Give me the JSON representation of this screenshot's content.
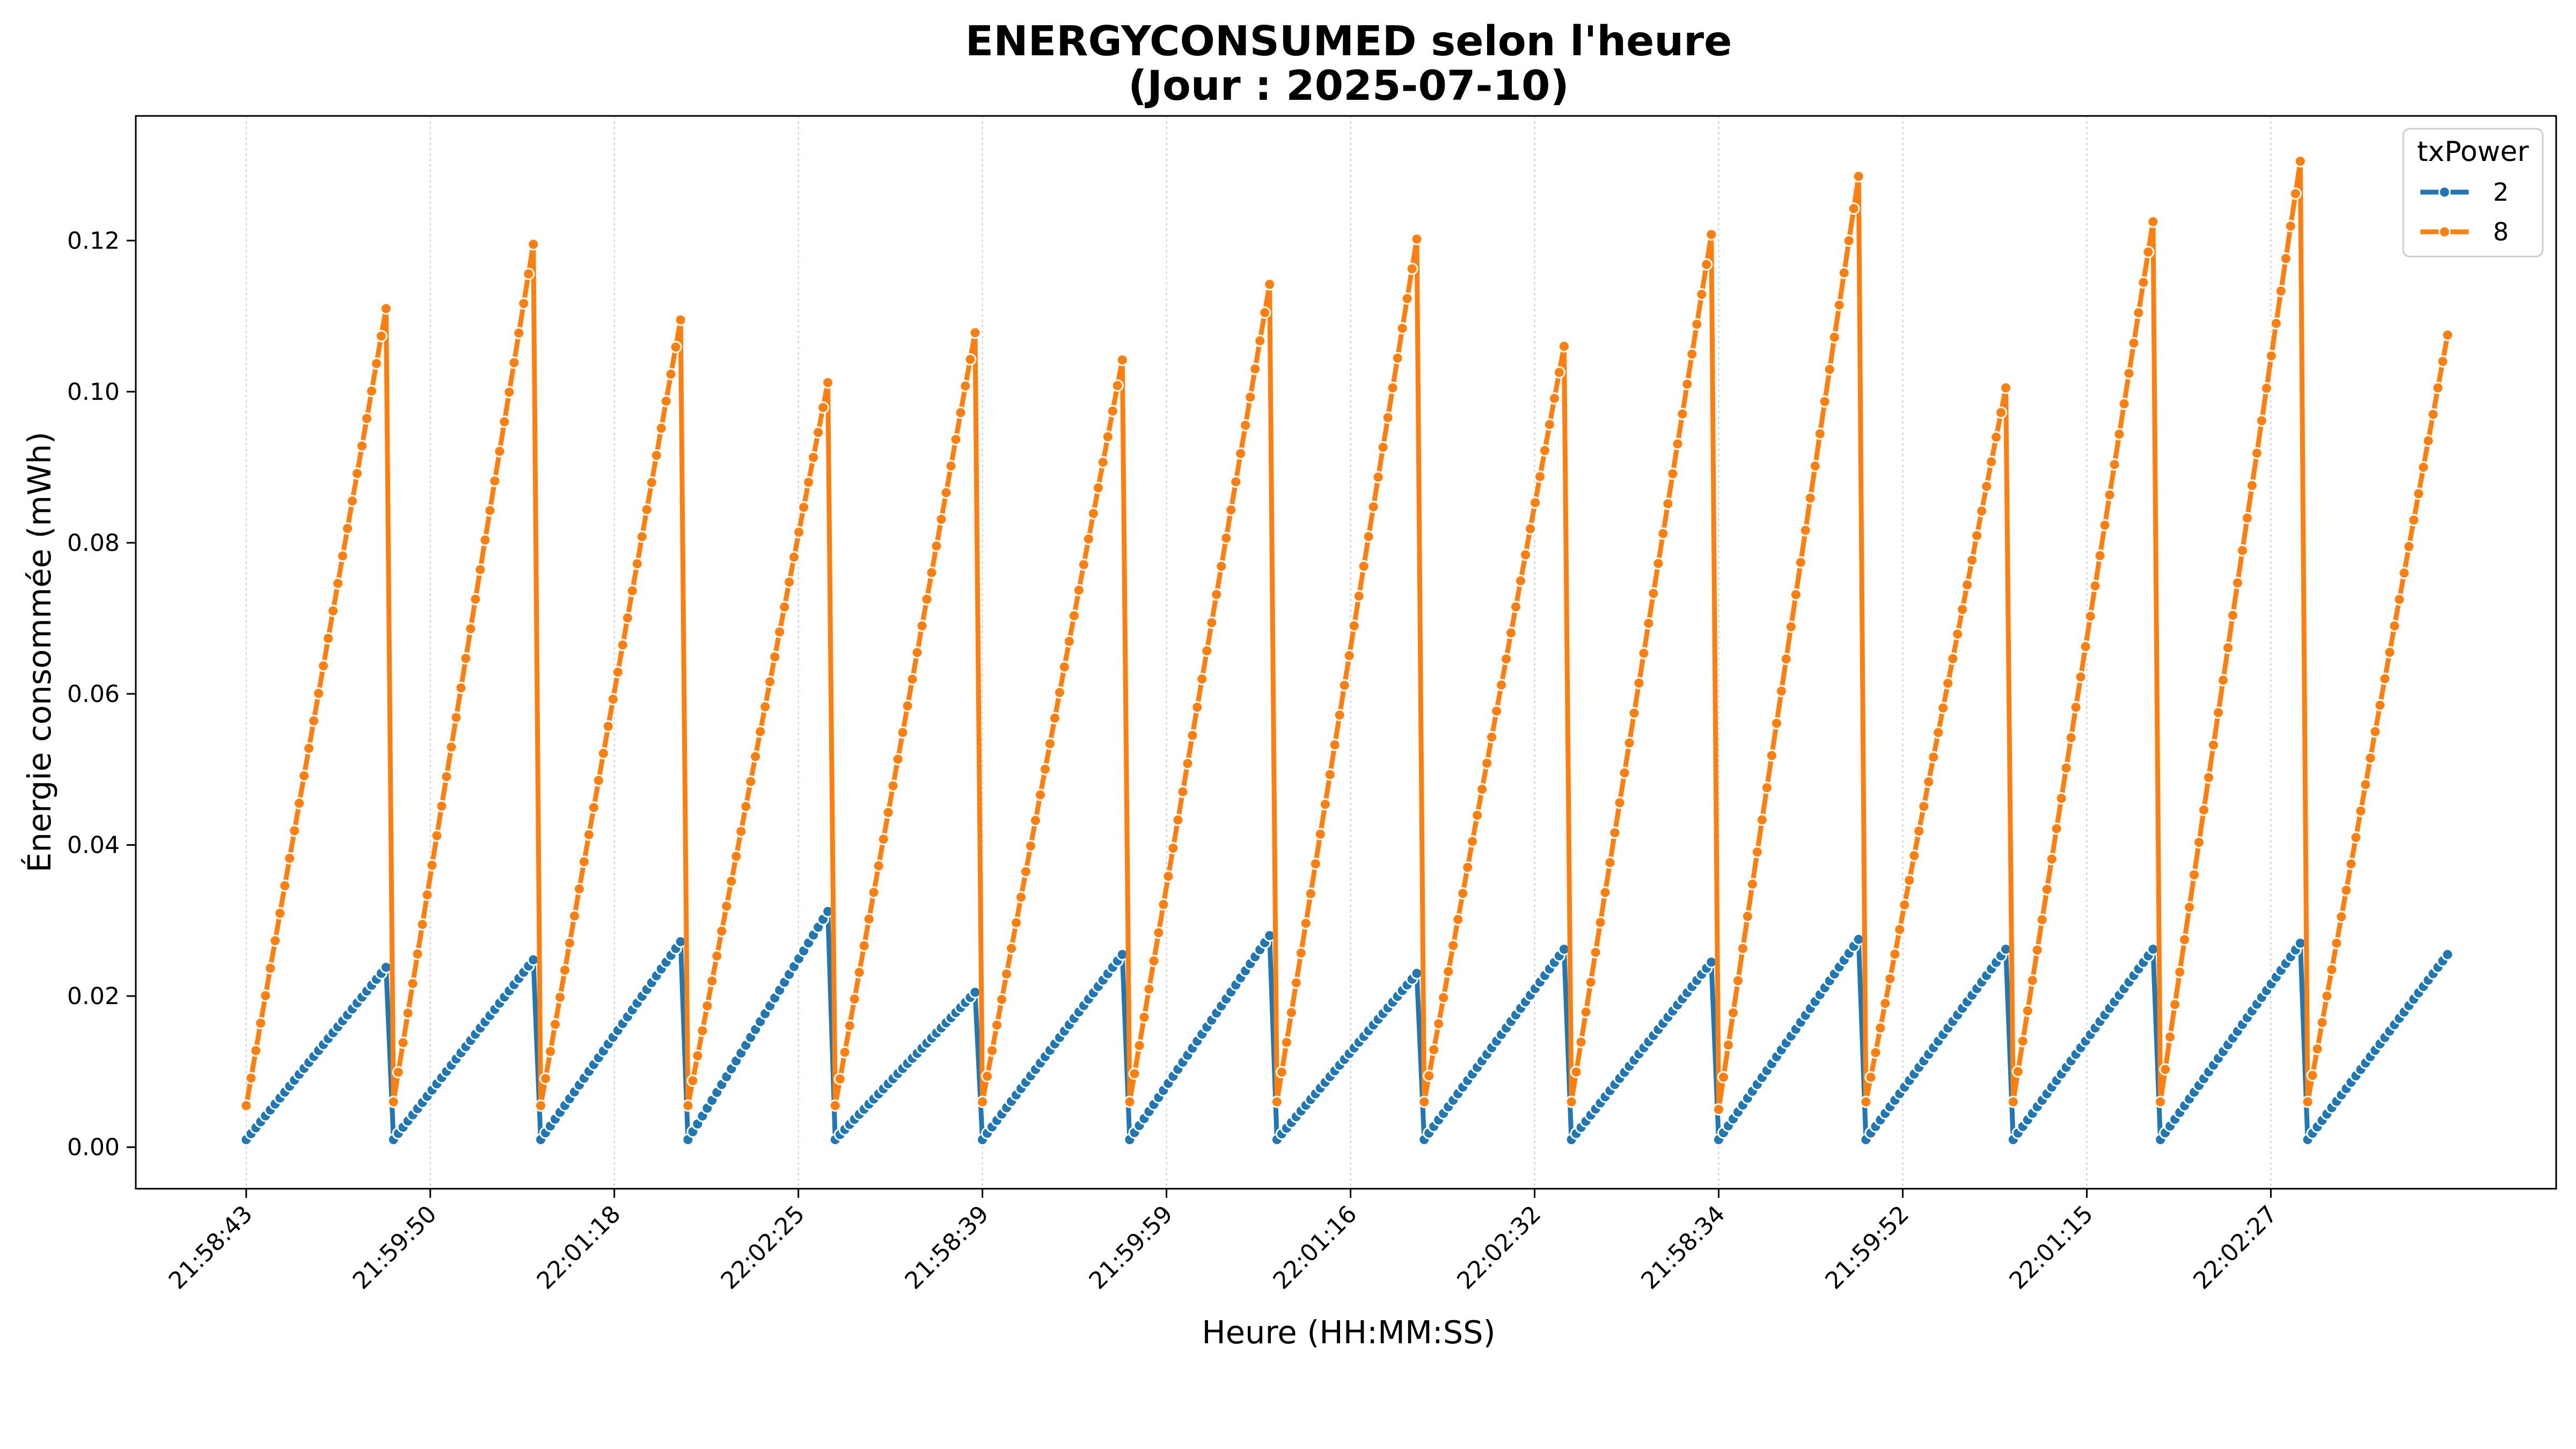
{
  "chart_data": {
    "type": "line",
    "title": "ENERGYCONSUMED selon l'heure",
    "subtitle": "(Jour : 2025-07-10)",
    "xlabel": "Heure (HH:MM:SS)",
    "ylabel": "Énergie consommée (mWh)",
    "x_tick_labels": [
      "21:58:43",
      "21:59:50",
      "22:01:18",
      "22:02:25",
      "21:58:39",
      "21:59:59",
      "22:01:16",
      "22:02:32",
      "21:58:34",
      "21:59:52",
      "22:01:15",
      "22:02:27"
    ],
    "y_ticks": [
      0.0,
      0.02,
      0.04,
      0.06,
      0.08,
      0.1,
      0.12
    ],
    "y_tick_labels": [
      "0.00",
      "0.02",
      "0.04",
      "0.06",
      "0.08",
      "0.10",
      "0.12"
    ],
    "ylim": [
      -0.0055,
      0.1365
    ],
    "x_range_ticks": [
      -0.6,
      12.55
    ],
    "grid_x": true,
    "grid_y": false,
    "legend": {
      "title": "txPower",
      "placement": "top-right"
    },
    "series": [
      {
        "name": "2",
        "color": "#1f77b4",
        "cycles": [
          {
            "start_tick": 0.0,
            "end_tick": 0.76,
            "points": 30,
            "y_start": 0.001,
            "y_end": 0.0238
          },
          {
            "start_tick": 0.8,
            "end_tick": 1.56,
            "points": 30,
            "y_start": 0.001,
            "y_end": 0.0248
          },
          {
            "start_tick": 1.6,
            "end_tick": 2.36,
            "points": 30,
            "y_start": 0.001,
            "y_end": 0.0272
          },
          {
            "start_tick": 2.4,
            "end_tick": 3.16,
            "points": 30,
            "y_start": 0.001,
            "y_end": 0.0312
          },
          {
            "start_tick": 3.2,
            "end_tick": 3.96,
            "points": 30,
            "y_start": 0.001,
            "y_end": 0.0205
          },
          {
            "start_tick": 4.0,
            "end_tick": 4.76,
            "points": 30,
            "y_start": 0.001,
            "y_end": 0.0255
          },
          {
            "start_tick": 4.8,
            "end_tick": 5.56,
            "points": 30,
            "y_start": 0.001,
            "y_end": 0.028
          },
          {
            "start_tick": 5.6,
            "end_tick": 6.36,
            "points": 30,
            "y_start": 0.001,
            "y_end": 0.023
          },
          {
            "start_tick": 6.4,
            "end_tick": 7.16,
            "points": 30,
            "y_start": 0.001,
            "y_end": 0.0262
          },
          {
            "start_tick": 7.2,
            "end_tick": 7.96,
            "points": 30,
            "y_start": 0.001,
            "y_end": 0.0245
          },
          {
            "start_tick": 8.0,
            "end_tick": 8.76,
            "points": 30,
            "y_start": 0.001,
            "y_end": 0.0275
          },
          {
            "start_tick": 8.8,
            "end_tick": 9.56,
            "points": 30,
            "y_start": 0.001,
            "y_end": 0.0262
          },
          {
            "start_tick": 9.6,
            "end_tick": 10.36,
            "points": 30,
            "y_start": 0.001,
            "y_end": 0.0262
          },
          {
            "start_tick": 10.4,
            "end_tick": 11.16,
            "points": 30,
            "y_start": 0.001,
            "y_end": 0.027
          },
          {
            "start_tick": 11.2,
            "end_tick": 11.96,
            "points": 30,
            "y_start": 0.001,
            "y_end": 0.0255
          }
        ]
      },
      {
        "name": "8",
        "color": "#ff7f0e",
        "cycles": [
          {
            "start_tick": 0.0,
            "end_tick": 0.76,
            "points": 30,
            "y_start": 0.0055,
            "y_end": 0.111
          },
          {
            "start_tick": 0.8,
            "end_tick": 1.56,
            "points": 30,
            "y_start": 0.006,
            "y_end": 0.1195
          },
          {
            "start_tick": 1.6,
            "end_tick": 2.36,
            "points": 30,
            "y_start": 0.0055,
            "y_end": 0.1095
          },
          {
            "start_tick": 2.4,
            "end_tick": 3.16,
            "points": 30,
            "y_start": 0.0055,
            "y_end": 0.1012
          },
          {
            "start_tick": 3.2,
            "end_tick": 3.96,
            "points": 30,
            "y_start": 0.0055,
            "y_end": 0.1078
          },
          {
            "start_tick": 4.0,
            "end_tick": 4.76,
            "points": 30,
            "y_start": 0.006,
            "y_end": 0.1042
          },
          {
            "start_tick": 4.8,
            "end_tick": 5.56,
            "points": 30,
            "y_start": 0.006,
            "y_end": 0.1142
          },
          {
            "start_tick": 5.6,
            "end_tick": 6.36,
            "points": 30,
            "y_start": 0.006,
            "y_end": 0.1202
          },
          {
            "start_tick": 6.4,
            "end_tick": 7.16,
            "points": 30,
            "y_start": 0.006,
            "y_end": 0.106
          },
          {
            "start_tick": 7.2,
            "end_tick": 7.96,
            "points": 30,
            "y_start": 0.006,
            "y_end": 0.1208
          },
          {
            "start_tick": 8.0,
            "end_tick": 8.76,
            "points": 30,
            "y_start": 0.005,
            "y_end": 0.1285
          },
          {
            "start_tick": 8.8,
            "end_tick": 9.56,
            "points": 30,
            "y_start": 0.006,
            "y_end": 0.1005
          },
          {
            "start_tick": 9.6,
            "end_tick": 10.36,
            "points": 30,
            "y_start": 0.006,
            "y_end": 0.1225
          },
          {
            "start_tick": 10.4,
            "end_tick": 11.16,
            "points": 30,
            "y_start": 0.006,
            "y_end": 0.1305
          },
          {
            "start_tick": 11.2,
            "end_tick": 11.96,
            "points": 30,
            "y_start": 0.006,
            "y_end": 0.1075
          }
        ]
      }
    ]
  }
}
